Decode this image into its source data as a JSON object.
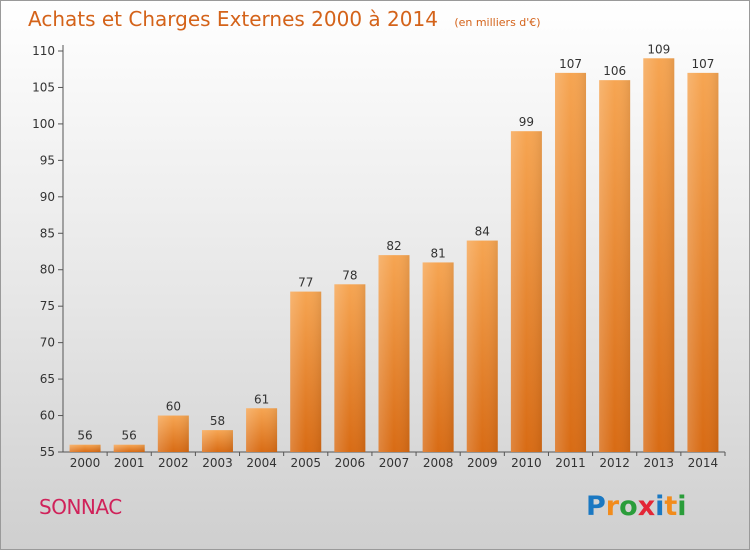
{
  "title": "Achats et Charges Externes 2000 à 2014",
  "subtitle": "(en milliers d'€)",
  "commune": "SONNAC",
  "logo": {
    "letters": [
      "P",
      "r",
      "o",
      "x",
      "i",
      "t",
      "i"
    ],
    "colors": [
      "#1a78c2",
      "#f28c1c",
      "#2a9d3a",
      "#e32636",
      "#1a78c2",
      "#f28c1c",
      "#2a9d3a"
    ]
  },
  "chart_data": {
    "type": "bar",
    "title": "Achats et Charges Externes 2000 à 2014",
    "subtitle": "(en milliers d'€)",
    "categories": [
      "2000",
      "2001",
      "2002",
      "2003",
      "2004",
      "2005",
      "2006",
      "2007",
      "2008",
      "2009",
      "2010",
      "2011",
      "2012",
      "2013",
      "2014"
    ],
    "values": [
      56,
      56,
      60,
      58,
      61,
      77,
      78,
      82,
      81,
      84,
      99,
      107,
      106,
      109,
      107
    ],
    "ylim": [
      55,
      110
    ],
    "yticks": [
      55,
      60,
      65,
      70,
      75,
      80,
      85,
      90,
      95,
      100,
      105,
      110
    ],
    "grid": false,
    "bar_color": "#f39c45",
    "xlabel": "",
    "ylabel": ""
  }
}
